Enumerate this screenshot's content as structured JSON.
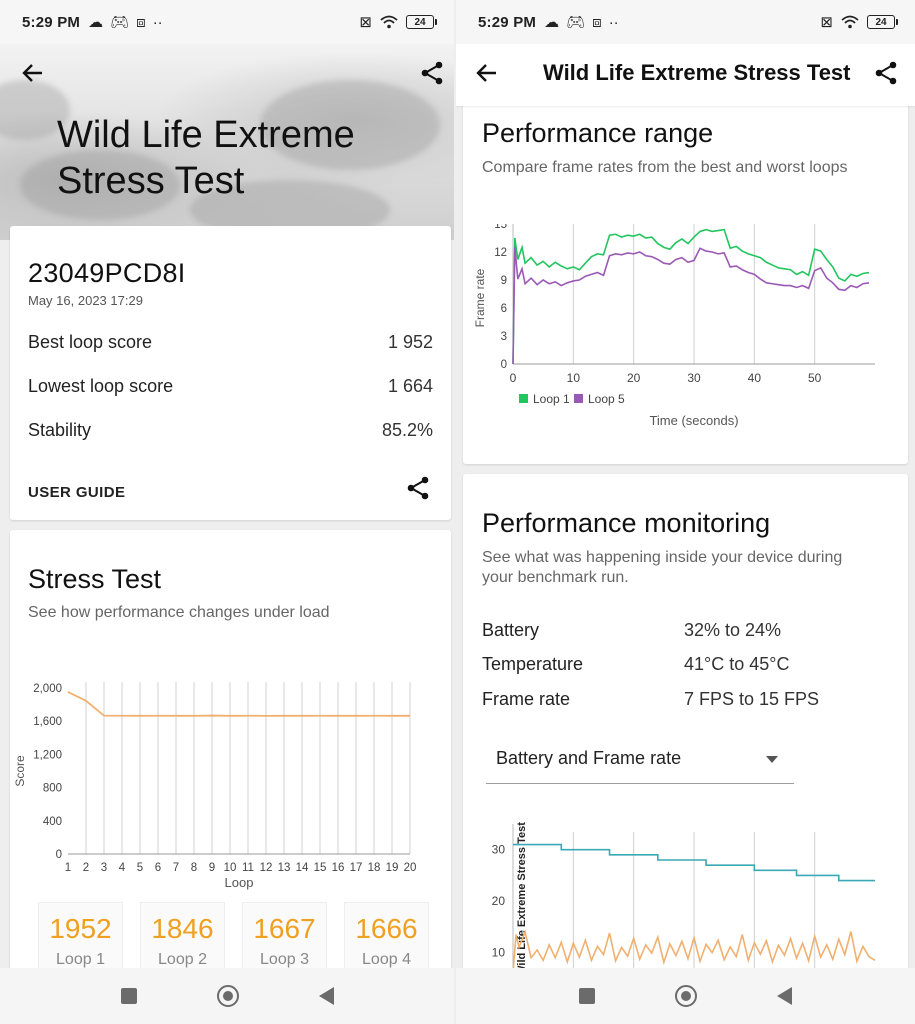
{
  "status": {
    "time": "5:29 PM",
    "battery": "24"
  },
  "left": {
    "title": "Wild Life Extreme Stress Test",
    "title_line1": "Wild Life Extreme",
    "title_line2": "Stress Test",
    "device": "23049PCD8I",
    "date": "May 16, 2023 17:29",
    "stats": [
      {
        "label": "Best loop score",
        "value": "1 952"
      },
      {
        "label": "Lowest loop score",
        "value": "1 664"
      },
      {
        "label": "Stability",
        "value": "85.2%"
      }
    ],
    "user_guide": "USER GUIDE",
    "stress": {
      "title": "Stress Test",
      "subtitle": "See how performance changes under load"
    },
    "loops": [
      {
        "score": "1952",
        "label": "Loop 1"
      },
      {
        "score": "1846",
        "label": "Loop 2"
      },
      {
        "score": "1667",
        "label": "Loop 3"
      },
      {
        "score": "1666",
        "label": "Loop 4"
      }
    ]
  },
  "right": {
    "appbar_title": "Wild Life Extreme Stress Test",
    "range": {
      "title": "Performance range",
      "subtitle": "Compare frame rates from the best and worst loops"
    },
    "monitor": {
      "title": "Performance monitoring",
      "subtitle_line1": "See what was happening inside your device during",
      "subtitle_line2": "your benchmark run.",
      "rows": [
        {
          "label": "Battery",
          "value": "32% to 24%"
        },
        {
          "label": "Temperature",
          "value": "41°C to 45°C"
        },
        {
          "label": "Frame rate",
          "value": "7 FPS to 15 FPS"
        }
      ],
      "dropdown": "Battery and Frame rate"
    }
  },
  "chart_data": [
    {
      "type": "line",
      "id": "stress-test",
      "ylabel": "Score",
      "xlabel": "Loop",
      "x": [
        1,
        2,
        3,
        4,
        5,
        6,
        7,
        8,
        9,
        10,
        11,
        12,
        13,
        14,
        15,
        16,
        17,
        18,
        19,
        20
      ],
      "series": [
        {
          "color": "#f0b070",
          "values": [
            1952,
            1846,
            1667,
            1666,
            1665,
            1666,
            1665,
            1665,
            1668,
            1665,
            1666,
            1664,
            1665,
            1665,
            1666,
            1665,
            1665,
            1666,
            1665,
            1665
          ]
        }
      ],
      "xlim": [
        1,
        20
      ],
      "ylim": [
        0,
        2000
      ],
      "yticks": [
        0,
        400,
        800,
        1200,
        1600,
        2000
      ],
      "ytick_labels": [
        "0",
        "400",
        "800",
        "1,200",
        "1,600",
        "2,000"
      ],
      "grid": "vertical"
    },
    {
      "type": "line",
      "id": "performance-range",
      "ylabel": "Frame rate",
      "xlabel": "Time (seconds)",
      "xticks": [
        0,
        10,
        20,
        30,
        40,
        50
      ],
      "yticks": [
        0,
        3,
        6,
        9,
        12,
        15
      ],
      "xlim": [
        0,
        60
      ],
      "ylim": [
        0,
        15
      ],
      "legend": "bottom-left",
      "series": [
        {
          "name": "Loop 1",
          "color": "#22c55e",
          "x": [
            0,
            0.3,
            0.8,
            1.5,
            2,
            3,
            4,
            5,
            6,
            7,
            8,
            9,
            10,
            11,
            12,
            13,
            14,
            15,
            16,
            17,
            18,
            19,
            20,
            21,
            22,
            23,
            24,
            25,
            26,
            27,
            28,
            29,
            30,
            31,
            32,
            33,
            34,
            35,
            36,
            37,
            38,
            39,
            40,
            41,
            42,
            43,
            44,
            45,
            46,
            47,
            48,
            49,
            50,
            51,
            52,
            53,
            54,
            55,
            56,
            57,
            58,
            59
          ],
          "y": [
            0,
            13.5,
            11.2,
            12.5,
            10.8,
            11.4,
            10.6,
            11,
            10.4,
            10.9,
            10.5,
            10.2,
            10.4,
            10.1,
            10.8,
            11.5,
            11.8,
            11.7,
            13.8,
            13.9,
            13.6,
            13.8,
            13.7,
            13.9,
            13.5,
            13.6,
            12.9,
            12.5,
            12.3,
            13,
            13.4,
            12.9,
            13.6,
            14.2,
            14.4,
            14.2,
            14.3,
            14.4,
            12.4,
            12.6,
            12.1,
            11.8,
            11.6,
            11.4,
            10.9,
            10.6,
            10.3,
            10.2,
            10.1,
            9.6,
            9.9,
            9.5,
            12.3,
            12.1,
            11.2,
            10.4,
            9.2,
            8.9,
            9.6,
            9.4,
            9.7,
            9.8
          ]
        },
        {
          "name": "Loop 5",
          "color": "#9b59b6",
          "x": [
            0,
            0.3,
            0.8,
            1.5,
            2,
            3,
            4,
            5,
            6,
            7,
            8,
            9,
            10,
            11,
            12,
            13,
            14,
            15,
            16,
            17,
            18,
            19,
            20,
            21,
            22,
            23,
            24,
            25,
            26,
            27,
            28,
            29,
            30,
            31,
            32,
            33,
            34,
            35,
            36,
            37,
            38,
            39,
            40,
            41,
            42,
            43,
            44,
            45,
            46,
            47,
            48,
            49,
            50,
            51,
            52,
            53,
            54,
            55,
            56,
            57,
            58,
            59
          ],
          "y": [
            0,
            12.5,
            9.1,
            10.2,
            8.6,
            9.2,
            8.5,
            9,
            8.6,
            8.8,
            8.4,
            8.7,
            8.9,
            9,
            9.4,
            9.6,
            9.8,
            9.5,
            11.6,
            11.8,
            11.7,
            11.9,
            11.8,
            12,
            11.6,
            11.5,
            11.2,
            10.8,
            10.7,
            11.2,
            11.4,
            10.9,
            11.1,
            12.4,
            12.1,
            12,
            11.8,
            11.9,
            10.4,
            10.5,
            10.1,
            9.8,
            9.6,
            9.1,
            8.7,
            8.6,
            8.5,
            8.4,
            8.4,
            8.2,
            8.4,
            8.1,
            10,
            10.3,
            9.2,
            8.7,
            8,
            7.9,
            8.4,
            8.2,
            8.6,
            8.7
          ]
        }
      ]
    },
    {
      "type": "line",
      "id": "battery-frame-rate",
      "title": "Wild Life Extreme Stress Test",
      "yticks": [
        10,
        20,
        30
      ],
      "series": [
        {
          "name": "Battery",
          "color": "#3aa9b5",
          "x": [
            0,
            8,
            8,
            16,
            16,
            24,
            24,
            32,
            32,
            40,
            40,
            47,
            47,
            54,
            54,
            60
          ],
          "y": [
            31,
            31,
            30,
            30,
            29,
            29,
            28,
            28,
            27,
            27,
            26,
            26,
            25,
            25,
            24,
            24
          ]
        },
        {
          "name": "Frame rate",
          "color": "#f0b070",
          "x": [
            0,
            0.5,
            1,
            2,
            3,
            4,
            5,
            6,
            7,
            8,
            9,
            10,
            11,
            12,
            13,
            14,
            15,
            16,
            17,
            18,
            19,
            20,
            21,
            22,
            23,
            24,
            25,
            26,
            27,
            28,
            29,
            30,
            31,
            32,
            33,
            34,
            35,
            36,
            37,
            38,
            39,
            40,
            41,
            42,
            43,
            44,
            45,
            46,
            47,
            48,
            49,
            50,
            51,
            52,
            53,
            54,
            55,
            56,
            57,
            58,
            59,
            60
          ],
          "y": [
            6,
            13.5,
            11,
            14,
            9,
            10.5,
            8.5,
            11.5,
            9,
            12,
            8.2,
            11.8,
            9.1,
            12.4,
            8.5,
            11.2,
            9.6,
            13.8,
            8.4,
            11,
            9.3,
            12.8,
            8.7,
            11.5,
            9.9,
            13,
            8.1,
            11.7,
            9.4,
            12.2,
            8.8,
            12.9,
            8.3,
            11.6,
            10,
            12.4,
            8.6,
            11.1,
            9.2,
            13.5,
            8.5,
            11.9,
            9.7,
            12.3,
            8.2,
            11.4,
            9.5,
            12.7,
            8.9,
            11.8,
            8.4,
            13.2,
            9.1,
            11.5,
            8.7,
            12.6,
            9.6,
            14.1,
            8.3,
            11.2,
            9.2,
            8.5
          ]
        }
      ]
    }
  ]
}
